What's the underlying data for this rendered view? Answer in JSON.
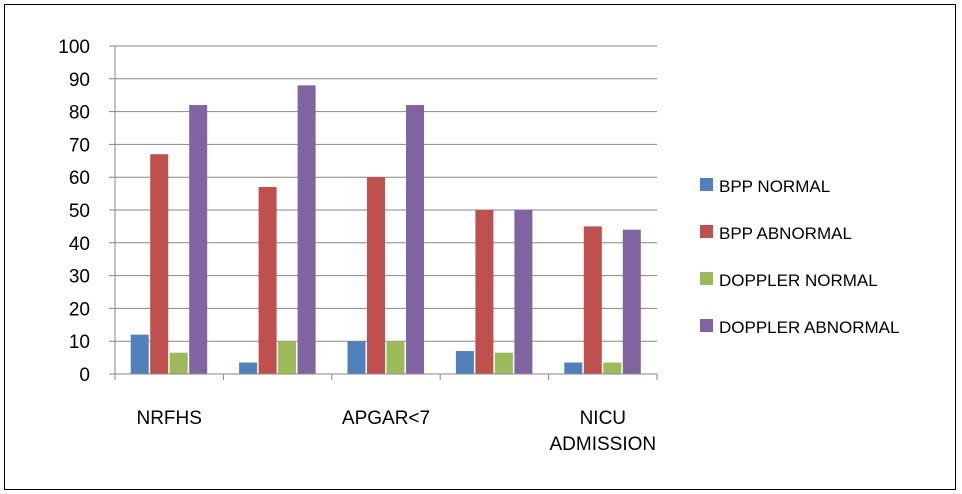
{
  "chart_data": {
    "type": "bar",
    "categories": [
      [
        "NRFHS"
      ],
      [],
      [
        "APGAR<7"
      ],
      [],
      [
        "NICU",
        "ADMISSION"
      ]
    ],
    "series": [
      {
        "name": "BPP NORMAL",
        "color": "#4f81bd",
        "values": [
          12,
          3.5,
          10,
          7,
          3.5
        ]
      },
      {
        "name": "BPP ABNORMAL",
        "color": "#c0504d",
        "values": [
          67,
          57,
          60,
          50,
          45
        ]
      },
      {
        "name": "DOPPLER NORMAL",
        "color": "#9bbb59",
        "values": [
          6.5,
          10,
          10,
          6.5,
          3.5
        ]
      },
      {
        "name": "DOPPLER ABNORMAL",
        "color": "#8064a2",
        "values": [
          82,
          88,
          82,
          50,
          44
        ]
      }
    ],
    "yticks": [
      0,
      10,
      20,
      30,
      40,
      50,
      60,
      70,
      80,
      90,
      100
    ],
    "ylim": [
      0,
      100
    ],
    "grid": true,
    "legend": "right"
  }
}
